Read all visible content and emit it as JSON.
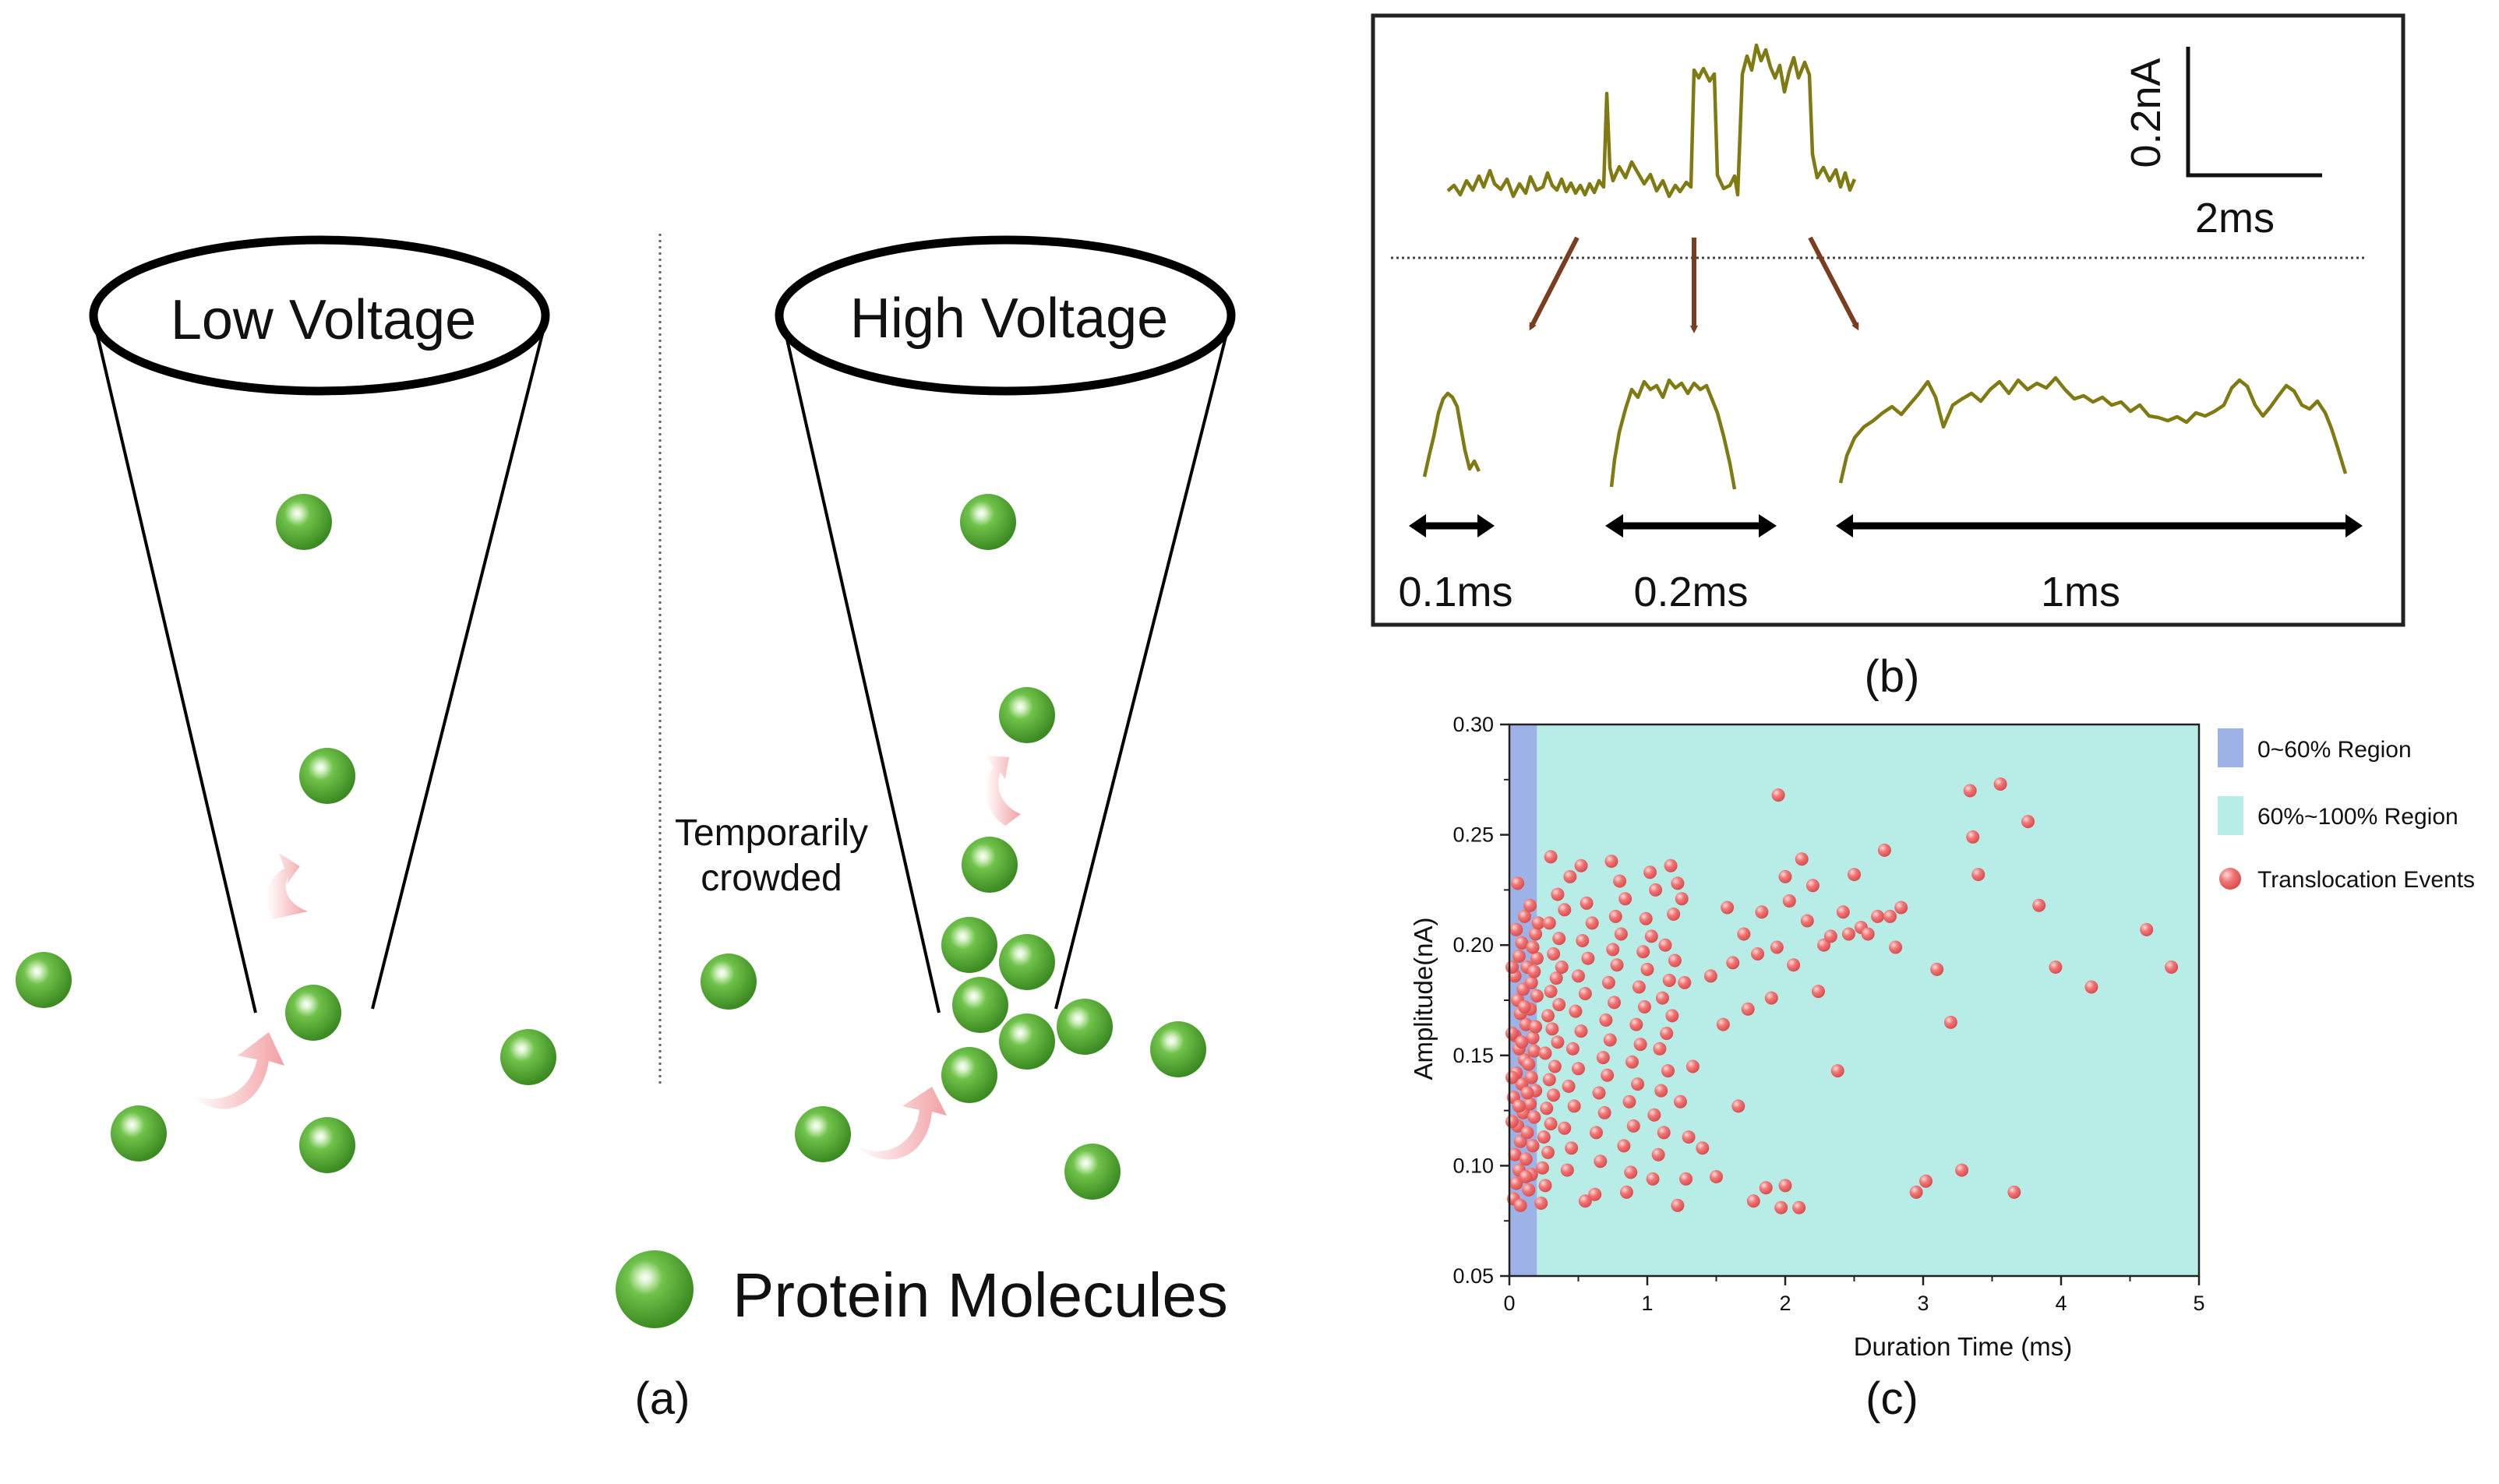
{
  "panel_a": {
    "low_voltage_label": "Low Voltage",
    "high_voltage_label": "High Voltage",
    "crowded_label_line1": "Temporarily",
    "crowded_label_line2": "crowded",
    "legend_label": "Protein Molecules",
    "caption": "(a)",
    "colors": {
      "molecule": "#5db13b",
      "arrow": "#f2a0a4"
    }
  },
  "panel_b": {
    "scale_y_label": "0.2nA",
    "scale_x_label": "2ms",
    "durations": [
      "0.1ms",
      "0.2ms",
      "1ms"
    ],
    "caption": "(b)",
    "colors": {
      "trace": "#807a12",
      "arrow": "#7a3d20"
    }
  },
  "panel_c": {
    "caption": "(c)",
    "colors": {
      "region_a": "#9db2e6",
      "region_b": "#b8ece6",
      "point": "#f07676"
    },
    "chart_data": {
      "type": "scatter",
      "title": "",
      "xlabel": "Duration Time (ms)",
      "ylabel": "Amplitude(nA)",
      "xlim": [
        0,
        5
      ],
      "ylim": [
        0.05,
        0.3
      ],
      "xticks": [
        "0",
        "1",
        "2",
        "3",
        "4",
        "5"
      ],
      "yticks": [
        "0.05",
        "0.10",
        "0.15",
        "0.20",
        "0.25",
        "0.30"
      ],
      "legend_position": "right",
      "regions": [
        {
          "name": "0~60% Region",
          "x_range": [
            0,
            0.2
          ]
        },
        {
          "name": "60%~100% Region",
          "x_range": [
            0.2,
            5
          ]
        }
      ],
      "series_name": "Translocation Events",
      "points": [
        [
          0.03,
          0.085
        ],
        [
          0.05,
          0.092
        ],
        [
          0.07,
          0.098
        ],
        [
          0.04,
          0.105
        ],
        [
          0.08,
          0.111
        ],
        [
          0.06,
          0.118
        ],
        [
          0.1,
          0.124
        ],
        [
          0.03,
          0.131
        ],
        [
          0.09,
          0.137
        ],
        [
          0.05,
          0.142
        ],
        [
          0.11,
          0.148
        ],
        [
          0.07,
          0.153
        ],
        [
          0.04,
          0.159
        ],
        [
          0.12,
          0.164
        ],
        [
          0.08,
          0.169
        ],
        [
          0.06,
          0.175
        ],
        [
          0.1,
          0.18
        ],
        [
          0.04,
          0.186
        ],
        [
          0.13,
          0.19
        ],
        [
          0.07,
          0.195
        ],
        [
          0.09,
          0.201
        ],
        [
          0.05,
          0.207
        ],
        [
          0.11,
          0.213
        ],
        [
          0.15,
          0.218
        ],
        [
          0.06,
          0.228
        ],
        [
          0.14,
          0.089
        ],
        [
          0.16,
          0.096
        ],
        [
          0.12,
          0.103
        ],
        [
          0.17,
          0.109
        ],
        [
          0.13,
          0.115
        ],
        [
          0.18,
          0.122
        ],
        [
          0.15,
          0.128
        ],
        [
          0.19,
          0.134
        ],
        [
          0.16,
          0.14
        ],
        [
          0.14,
          0.146
        ],
        [
          0.18,
          0.152
        ],
        [
          0.17,
          0.158
        ],
        [
          0.19,
          0.163
        ],
        [
          0.15,
          0.171
        ],
        [
          0.2,
          0.177
        ],
        [
          0.16,
          0.183
        ],
        [
          0.18,
          0.188
        ],
        [
          0.2,
          0.194
        ],
        [
          0.17,
          0.199
        ],
        [
          0.08,
          0.082
        ],
        [
          0.19,
          0.205
        ],
        [
          0.21,
          0.21
        ],
        [
          0.02,
          0.12
        ],
        [
          0.02,
          0.16
        ],
        [
          0.02,
          0.14
        ],
        [
          0.02,
          0.19
        ],
        [
          0.11,
          0.172
        ],
        [
          0.09,
          0.156
        ],
        [
          0.13,
          0.133
        ],
        [
          0.07,
          0.127
        ],
        [
          0.12,
          0.095
        ],
        [
          0.23,
          0.083
        ],
        [
          0.26,
          0.091
        ],
        [
          0.24,
          0.099
        ],
        [
          0.28,
          0.106
        ],
        [
          0.25,
          0.113
        ],
        [
          0.3,
          0.119
        ],
        [
          0.27,
          0.126
        ],
        [
          0.32,
          0.132
        ],
        [
          0.29,
          0.139
        ],
        [
          0.33,
          0.145
        ],
        [
          0.26,
          0.151
        ],
        [
          0.35,
          0.156
        ],
        [
          0.31,
          0.162
        ],
        [
          0.28,
          0.168
        ],
        [
          0.36,
          0.173
        ],
        [
          0.3,
          0.179
        ],
        [
          0.34,
          0.185
        ],
        [
          0.38,
          0.19
        ],
        [
          0.32,
          0.196
        ],
        [
          0.36,
          0.203
        ],
        [
          0.29,
          0.21
        ],
        [
          0.4,
          0.216
        ],
        [
          0.35,
          0.223
        ],
        [
          0.44,
          0.231
        ],
        [
          0.3,
          0.24
        ],
        [
          0.42,
          0.098
        ],
        [
          0.45,
          0.108
        ],
        [
          0.4,
          0.117
        ],
        [
          0.47,
          0.127
        ],
        [
          0.43,
          0.136
        ],
        [
          0.5,
          0.144
        ],
        [
          0.46,
          0.153
        ],
        [
          0.52,
          0.161
        ],
        [
          0.48,
          0.17
        ],
        [
          0.55,
          0.178
        ],
        [
          0.5,
          0.186
        ],
        [
          0.57,
          0.194
        ],
        [
          0.53,
          0.202
        ],
        [
          0.6,
          0.21
        ],
        [
          0.56,
          0.219
        ],
        [
          0.52,
          0.236
        ],
        [
          0.62,
          0.087
        ],
        [
          0.66,
          0.102
        ],
        [
          0.63,
          0.115
        ],
        [
          0.69,
          0.124
        ],
        [
          0.65,
          0.133
        ],
        [
          0.71,
          0.141
        ],
        [
          0.68,
          0.149
        ],
        [
          0.73,
          0.157
        ],
        [
          0.7,
          0.166
        ],
        [
          0.76,
          0.174
        ],
        [
          0.72,
          0.183
        ],
        [
          0.78,
          0.191
        ],
        [
          0.75,
          0.198
        ],
        [
          0.81,
          0.205
        ],
        [
          0.77,
          0.213
        ],
        [
          0.84,
          0.221
        ],
        [
          0.8,
          0.229
        ],
        [
          0.74,
          0.238
        ],
        [
          0.85,
          0.088
        ],
        [
          0.88,
          0.097
        ],
        [
          0.83,
          0.109
        ],
        [
          0.9,
          0.118
        ],
        [
          0.87,
          0.129
        ],
        [
          0.93,
          0.137
        ],
        [
          0.89,
          0.147
        ],
        [
          0.95,
          0.155
        ],
        [
          0.92,
          0.164
        ],
        [
          0.98,
          0.172
        ],
        [
          0.94,
          0.181
        ],
        [
          1.0,
          0.189
        ],
        [
          0.97,
          0.197
        ],
        [
          1.03,
          0.204
        ],
        [
          0.99,
          0.212
        ],
        [
          1.06,
          0.225
        ],
        [
          1.02,
          0.233
        ],
        [
          1.04,
          0.094
        ],
        [
          1.08,
          0.105
        ],
        [
          1.12,
          0.115
        ],
        [
          1.05,
          0.123
        ],
        [
          1.1,
          0.134
        ],
        [
          1.15,
          0.143
        ],
        [
          1.09,
          0.153
        ],
        [
          1.14,
          0.16
        ],
        [
          1.18,
          0.168
        ],
        [
          1.11,
          0.176
        ],
        [
          1.16,
          0.184
        ],
        [
          1.2,
          0.193
        ],
        [
          1.13,
          0.2
        ],
        [
          1.19,
          0.214
        ],
        [
          1.22,
          0.228
        ],
        [
          1.17,
          0.236
        ],
        [
          1.25,
          0.221
        ],
        [
          1.27,
          0.183
        ],
        [
          1.24,
          0.129
        ],
        [
          1.3,
          0.113
        ],
        [
          1.28,
          0.094
        ],
        [
          1.33,
          0.145
        ],
        [
          1.4,
          0.108
        ],
        [
          1.46,
          0.186
        ],
        [
          1.5,
          0.095
        ],
        [
          1.55,
          0.164
        ],
        [
          1.58,
          0.217
        ],
        [
          1.62,
          0.192
        ],
        [
          1.66,
          0.127
        ],
        [
          1.7,
          0.205
        ],
        [
          1.73,
          0.171
        ],
        [
          1.77,
          0.084
        ],
        [
          1.8,
          0.196
        ],
        [
          1.83,
          0.215
        ],
        [
          1.86,
          0.09
        ],
        [
          1.9,
          0.176
        ],
        [
          1.94,
          0.199
        ],
        [
          1.97,
          0.081
        ],
        [
          2.0,
          0.231
        ],
        [
          2.03,
          0.22
        ],
        [
          2.06,
          0.191
        ],
        [
          2.1,
          0.081
        ],
        [
          2.12,
          0.239
        ],
        [
          2.16,
          0.211
        ],
        [
          2.2,
          0.227
        ],
        [
          2.24,
          0.179
        ],
        [
          2.28,
          0.2
        ],
        [
          2.33,
          0.204
        ],
        [
          2.38,
          0.143
        ],
        [
          2.42,
          0.215
        ],
        [
          2.46,
          0.205
        ],
        [
          2.5,
          0.232
        ],
        [
          2.55,
          0.208
        ],
        [
          2.6,
          0.205
        ],
        [
          2.67,
          0.213
        ],
        [
          2.72,
          0.243
        ],
        [
          2.76,
          0.213
        ],
        [
          2.8,
          0.199
        ],
        [
          2.84,
          0.217
        ],
        [
          2.95,
          0.088
        ],
        [
          3.02,
          0.093
        ],
        [
          3.1,
          0.189
        ],
        [
          3.28,
          0.098
        ],
        [
          1.95,
          0.268
        ],
        [
          3.34,
          0.27
        ],
        [
          3.36,
          0.249
        ],
        [
          3.4,
          0.232
        ],
        [
          3.56,
          0.273
        ],
        [
          3.66,
          0.088
        ],
        [
          3.76,
          0.256
        ],
        [
          3.84,
          0.218
        ],
        [
          3.96,
          0.19
        ],
        [
          4.22,
          0.181
        ],
        [
          4.62,
          0.207
        ],
        [
          4.8,
          0.19
        ],
        [
          3.2,
          0.165
        ],
        [
          1.22,
          0.082
        ],
        [
          0.55,
          0.084
        ],
        [
          2.0,
          0.091
        ]
      ]
    }
  }
}
